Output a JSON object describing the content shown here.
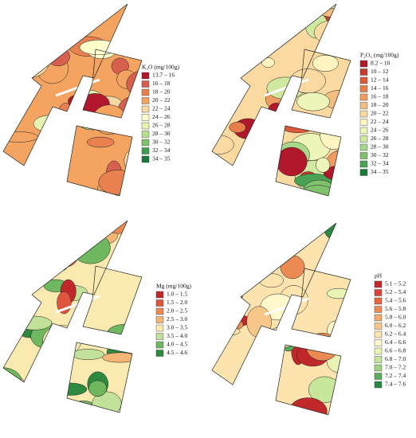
{
  "panels": [
    {
      "legend": {
        "title": "K₂O (mg/100g)",
        "entries": [
          {
            "label": "13.7 – 16",
            "color": "#b2182b"
          },
          {
            "label": "16 – 18",
            "color": "#d6604d"
          },
          {
            "label": "18 – 20",
            "color": "#e8804f"
          },
          {
            "label": "20 – 22",
            "color": "#f4a460"
          },
          {
            "label": "22 – 24",
            "color": "#f6d9a0"
          },
          {
            "label": "24 – 26",
            "color": "#ffffcc"
          },
          {
            "label": "26 – 28",
            "color": "#e6f2b0"
          },
          {
            "label": "28 – 30",
            "color": "#b8e08a"
          },
          {
            "label": "30 – 32",
            "color": "#7fc26b"
          },
          {
            "label": "32 – 34",
            "color": "#3f9e4d"
          },
          {
            "label": "34 – 35",
            "color": "#1a7a3a"
          }
        ]
      }
    },
    {
      "legend": {
        "title": "P₂O₅ (mg/100g)",
        "entries": [
          {
            "label": "8.2 – 10",
            "color": "#b2182b"
          },
          {
            "label": "10 – 12",
            "color": "#c83a2e"
          },
          {
            "label": "12 – 14",
            "color": "#dc5a3a"
          },
          {
            "label": "14 – 16",
            "color": "#e87c4a"
          },
          {
            "label": "16 – 18",
            "color": "#f09c60"
          },
          {
            "label": "18 – 20",
            "color": "#f6bd80"
          },
          {
            "label": "20 – 22",
            "color": "#fadaa0"
          },
          {
            "label": "22 – 24",
            "color": "#fff5c0"
          },
          {
            "label": "24 – 26",
            "color": "#eef5b8"
          },
          {
            "label": "26 – 28",
            "color": "#cfe9a0"
          },
          {
            "label": "28 – 30",
            "color": "#a8d88a"
          },
          {
            "label": "30 – 32",
            "color": "#7fc26b"
          },
          {
            "label": "32 – 34",
            "color": "#4aa255"
          },
          {
            "label": "34 – 35",
            "color": "#1a7a3a"
          }
        ]
      }
    },
    {
      "legend": {
        "title": "Mg (mg/100g)",
        "entries": [
          {
            "label": "1.0 – 1.5",
            "color": "#c0282a"
          },
          {
            "label": "1.5 – 2.0",
            "color": "#e0563c"
          },
          {
            "label": "2.0 – 2.5",
            "color": "#ee8a52"
          },
          {
            "label": "2.5 – 3.0",
            "color": "#f5b574"
          },
          {
            "label": "3.0 – 3.5",
            "color": "#faeab0"
          },
          {
            "label": "3.5 – 4.0",
            "color": "#c2e29a"
          },
          {
            "label": "4.0 – 4.5",
            "color": "#6fb860"
          },
          {
            "label": "4.5 – 4.6",
            "color": "#2e8a3e"
          }
        ]
      }
    },
    {
      "legend": {
        "title": "pH",
        "entries": [
          {
            "label": "5.1 – 5.2",
            "color": "#c0282a"
          },
          {
            "label": "5.2 – 5.4",
            "color": "#d8463a"
          },
          {
            "label": "5.4 – 5.6",
            "color": "#e4673f"
          },
          {
            "label": "5.6 – 5.8",
            "color": "#eb8a52"
          },
          {
            "label": "5.8 – 6.0",
            "color": "#f2aa6a"
          },
          {
            "label": "6.0 – 6.2",
            "color": "#f7c78a"
          },
          {
            "label": "6.2 – 6.4",
            "color": "#fde4ae"
          },
          {
            "label": "6.4 – 6.6",
            "color": "#fff8cc"
          },
          {
            "label": "6.6 – 6.8",
            "color": "#e8f3b4"
          },
          {
            "label": "6.8 – 7.0",
            "color": "#c8e59c"
          },
          {
            "label": "7.0 – 7.2",
            "color": "#9fd283"
          },
          {
            "label": "7.2 – 7.4",
            "color": "#5cab5d"
          },
          {
            "label": "7.4 – 7.6",
            "color": "#2a8a45"
          }
        ]
      }
    }
  ]
}
